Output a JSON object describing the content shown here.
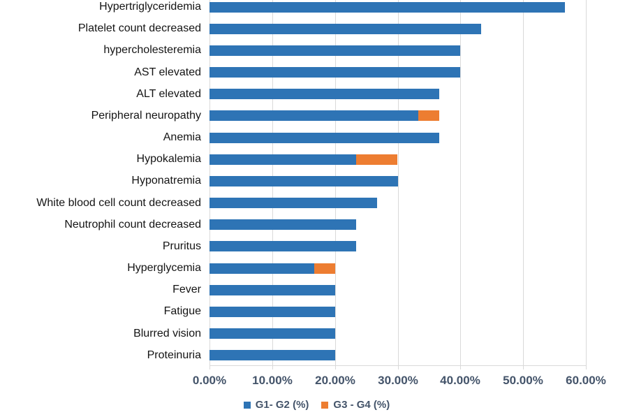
{
  "chart_data": {
    "type": "bar",
    "orientation": "horizontal",
    "stacked": true,
    "title": "",
    "xlabel": "",
    "ylabel": "",
    "grid": true,
    "categories": [
      "Hypertriglyceridemia",
      "Platelet count decreased",
      "hypercholesteremia",
      "AST elevated",
      "ALT elevated",
      "Peripheral neuropathy",
      "Anemia",
      "Hypokalemia",
      "Hyponatremia",
      "White blood cell count decreased",
      "Neutrophil count decreased",
      "Pruritus",
      "Hyperglycemia",
      "Fever",
      "Fatigue",
      "Blurred vision",
      "Proteinuria"
    ],
    "series": [
      {
        "name": "G1- G2 (%)",
        "color": "#2E74B5",
        "values": [
          56.67,
          43.33,
          40.0,
          40.0,
          36.67,
          33.33,
          36.67,
          23.33,
          30.0,
          26.67,
          23.33,
          23.33,
          16.67,
          20.0,
          20.0,
          20.0,
          20.0
        ]
      },
      {
        "name": "G3 - G4 (%)",
        "color": "#ED7D31",
        "values": [
          0,
          0,
          0,
          0,
          0,
          3.33,
          0,
          6.67,
          0,
          0,
          0,
          0,
          3.33,
          0,
          0,
          0,
          0
        ]
      }
    ],
    "x_axis": {
      "min": 0,
      "max": 60,
      "tick_step": 10,
      "ticks": [
        "0.00%",
        "10.00%",
        "20.00%",
        "30.00%",
        "40.00%",
        "50.00%",
        "60.00%"
      ]
    },
    "legend": {
      "position": "bottom",
      "items": [
        {
          "label": "G1- G2 (%)",
          "color": "#2E74B5"
        },
        {
          "label": "G3 - G4 (%)",
          "color": "#ED7D31"
        }
      ]
    }
  },
  "colors": {
    "bar_blue": "#2E74B5",
    "bar_orange": "#ED7D31",
    "gridline": "#D9D9D9",
    "axis_line": "#D9D9D9",
    "axis_text": "#44546A",
    "category_text": "#141414"
  }
}
